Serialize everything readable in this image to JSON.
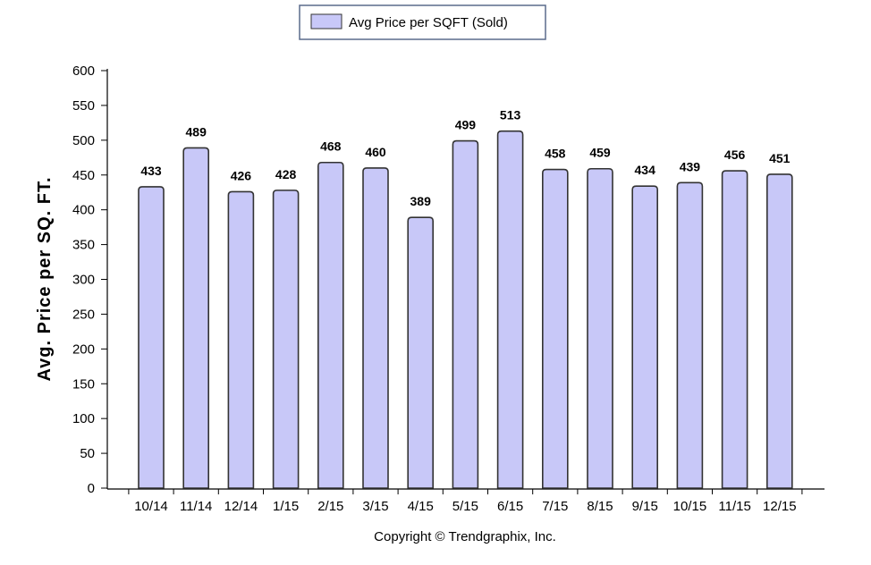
{
  "chart_data": {
    "type": "bar",
    "categories": [
      "10/14",
      "11/14",
      "12/14",
      "1/15",
      "2/15",
      "3/15",
      "4/15",
      "5/15",
      "6/15",
      "7/15",
      "8/15",
      "9/15",
      "10/15",
      "11/15",
      "12/15"
    ],
    "series": [
      {
        "name": "Avg Price per SQFT (Sold)",
        "values": [
          433,
          489,
          426,
          428,
          468,
          460,
          389,
          499,
          513,
          458,
          459,
          434,
          439,
          456,
          451
        ]
      }
    ],
    "title": "",
    "xlabel": "",
    "ylabel": "Avg. Price per SQ. FT.",
    "ylim": [
      0,
      600
    ],
    "yticks": [
      0,
      50,
      100,
      150,
      200,
      250,
      300,
      350,
      400,
      450,
      500,
      550,
      600
    ],
    "grid": false,
    "legend_position": "top-center",
    "data_labels": true,
    "bar_color": "#c8c8f8",
    "bar_stroke": "#333333"
  },
  "legend": {
    "label": "Avg Price per SQFT (Sold)"
  },
  "footer": {
    "copyright": "Copyright © Trendgraphix, Inc."
  }
}
